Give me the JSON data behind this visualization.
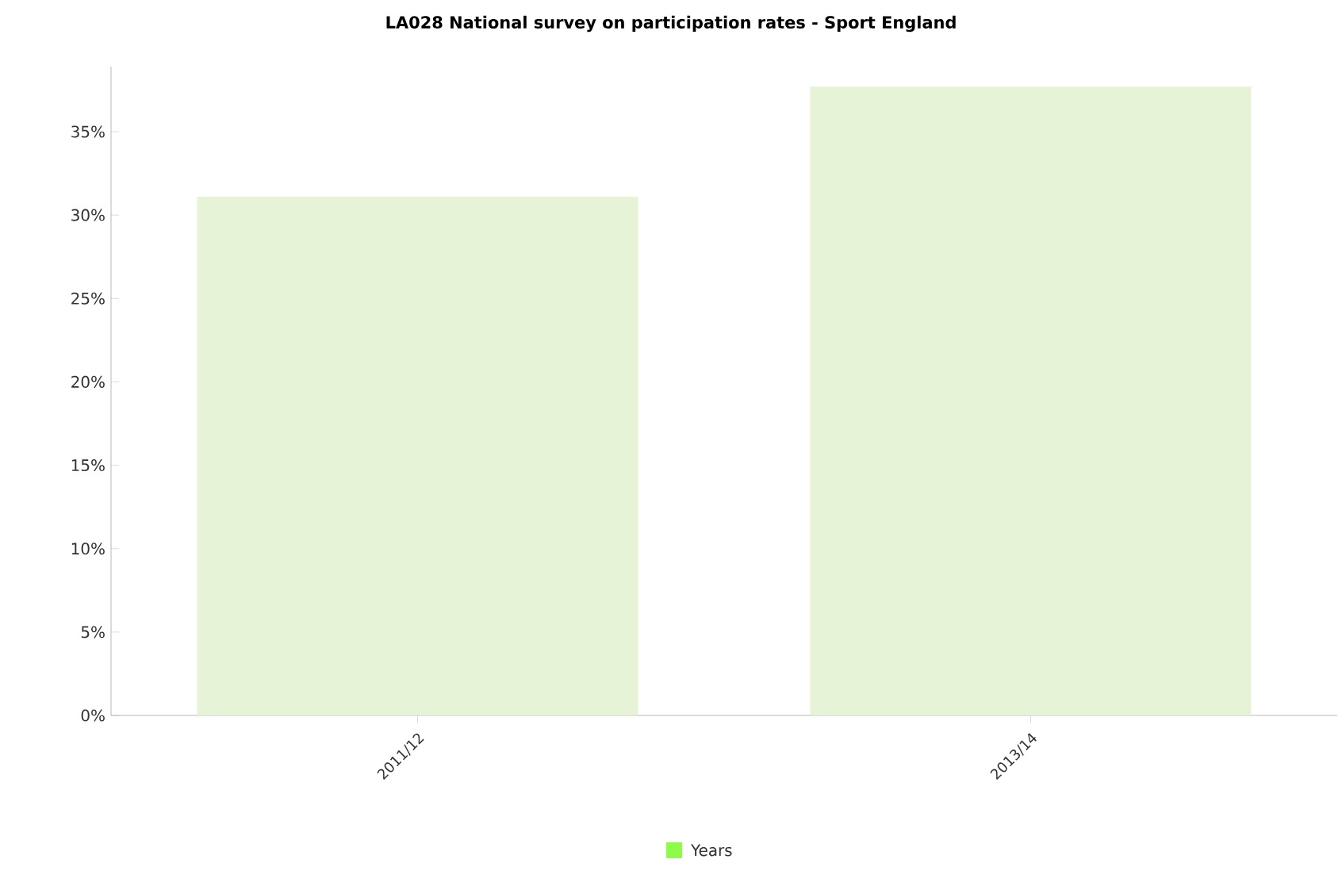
{
  "chart_data": {
    "type": "bar",
    "title": "LA028 National survey on participation rates - Sport England",
    "categories": [
      "2011/12",
      "2013/14"
    ],
    "series": [
      {
        "name": "Years",
        "color": "#e6f3d6",
        "values": [
          31.1,
          37.7
        ]
      }
    ],
    "ylim": [
      0,
      38.9
    ],
    "yticks": [
      {
        "value": 0,
        "label": "0%"
      },
      {
        "value": 5,
        "label": "5%"
      },
      {
        "value": 10,
        "label": "10%"
      },
      {
        "value": 15,
        "label": "15%"
      },
      {
        "value": 20,
        "label": "20%"
      },
      {
        "value": 25,
        "label": "25%"
      },
      {
        "value": 30,
        "label": "30%"
      },
      {
        "value": 35,
        "label": "35%"
      }
    ],
    "legend": "bottom",
    "grid": false
  }
}
